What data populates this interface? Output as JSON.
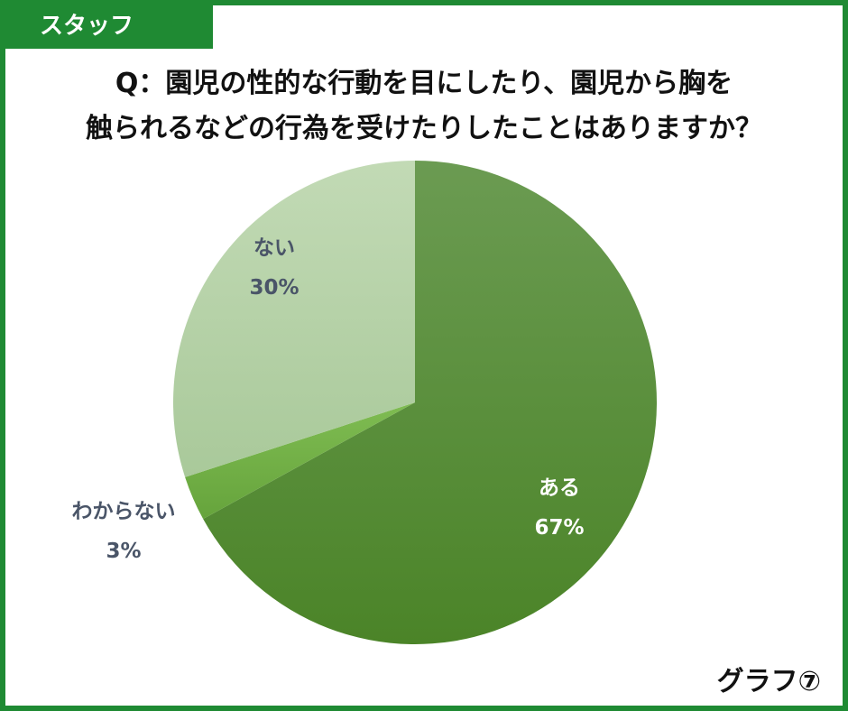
{
  "tab": {
    "label": "スタッフ"
  },
  "title": {
    "line1": "Q：園児の性的な行動を目にしたり、園児から胸を",
    "line2": "触られるなどの行為を受けたりしたことはありますか？"
  },
  "graph_label": "グラフ⑦",
  "colors": {
    "frame": "#1f8a33",
    "aru": "#5a9237",
    "wakaranai": "#72b048",
    "nai": "#b5d1a6",
    "label_dark": "#4a5568",
    "label_light": "#ffffff"
  },
  "chart_data": {
    "type": "pie",
    "title": "Q：園児の性的な行動を目にしたり、園児から胸を触られるなどの行為を受けたりしたことはありますか？",
    "slices": [
      {
        "label": "ある",
        "value": 67,
        "value_label": "67%"
      },
      {
        "label": "わからない",
        "value": 3,
        "value_label": "3%"
      },
      {
        "label": "ない",
        "value": 30,
        "value_label": "30%"
      }
    ]
  }
}
